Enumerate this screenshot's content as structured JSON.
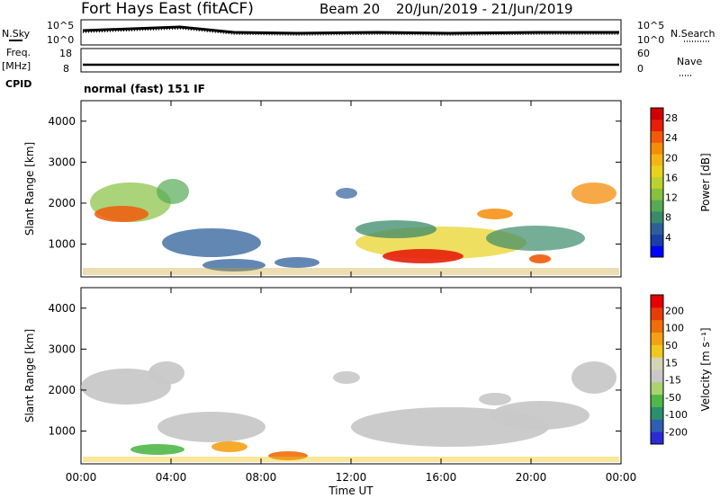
{
  "header": {
    "station": "Fort Hays East (fitACF)",
    "beam": "Beam 20",
    "daterange": "20/Jun/2019 - 21/Jun/2019"
  },
  "labels": {
    "nsky": "N.Sky",
    "nsearch": "N.Search",
    "freq": "Freq.",
    "mhz": "[MHz]",
    "nave": "Nave",
    "cpid": "CPID",
    "cpid_value": "normal (fast) 151 IF",
    "exp_top": "10^5",
    "exp_bottom": "10^0",
    "freq_top": "18",
    "freq_bottom": "8",
    "nave_top": "60",
    "nave_bottom": "0"
  },
  "chart_data": [
    {
      "type": "heatmap",
      "title": "",
      "xlabel": "Time UT",
      "ylabel": "Slant Range [km]",
      "x_ticks": [
        "00:00",
        "04:00",
        "08:00",
        "12:00",
        "16:00",
        "20:00",
        "00:00"
      ],
      "xlim_hours": [
        0,
        24
      ],
      "y_ticks": [
        1000,
        2000,
        3000,
        4000
      ],
      "ylim": [
        200,
        4500
      ],
      "colorbar": {
        "label": "Power [dB]",
        "ticks": [
          4,
          8,
          12,
          16,
          20,
          24,
          28
        ],
        "range": [
          0,
          30
        ],
        "colors": [
          "#0000ff",
          "#1a3fa8",
          "#2d5f9a",
          "#3a8a6a",
          "#55aa55",
          "#88c040",
          "#b9d22d",
          "#e8d21e",
          "#f5b414",
          "#f58c0a",
          "#f05a0a",
          "#e61e0a",
          "#d20000"
        ]
      },
      "grid": false
    },
    {
      "type": "heatmap",
      "title": "",
      "xlabel": "Time UT",
      "ylabel": "Slant Range [km]",
      "x_ticks": [
        "00:00",
        "04:00",
        "08:00",
        "12:00",
        "16:00",
        "20:00",
        "00:00"
      ],
      "xlim_hours": [
        0,
        24
      ],
      "y_ticks": [
        1000,
        2000,
        3000,
        4000
      ],
      "ylim": [
        200,
        4500
      ],
      "colorbar": {
        "label": "Velocity [m s⁻¹]",
        "ticks": [
          200,
          100,
          50,
          15,
          -15,
          -50,
          -100,
          -200
        ],
        "colors": [
          "#2a2ad6",
          "#2e5fb4",
          "#2a8f6a",
          "#4fb848",
          "#a8d46e",
          "#c8c8c8",
          "#d4d4b4",
          "#f0c81e",
          "#f5a014",
          "#f06e0a",
          "#e63c0a",
          "#e60000"
        ]
      },
      "grid": false
    }
  ]
}
